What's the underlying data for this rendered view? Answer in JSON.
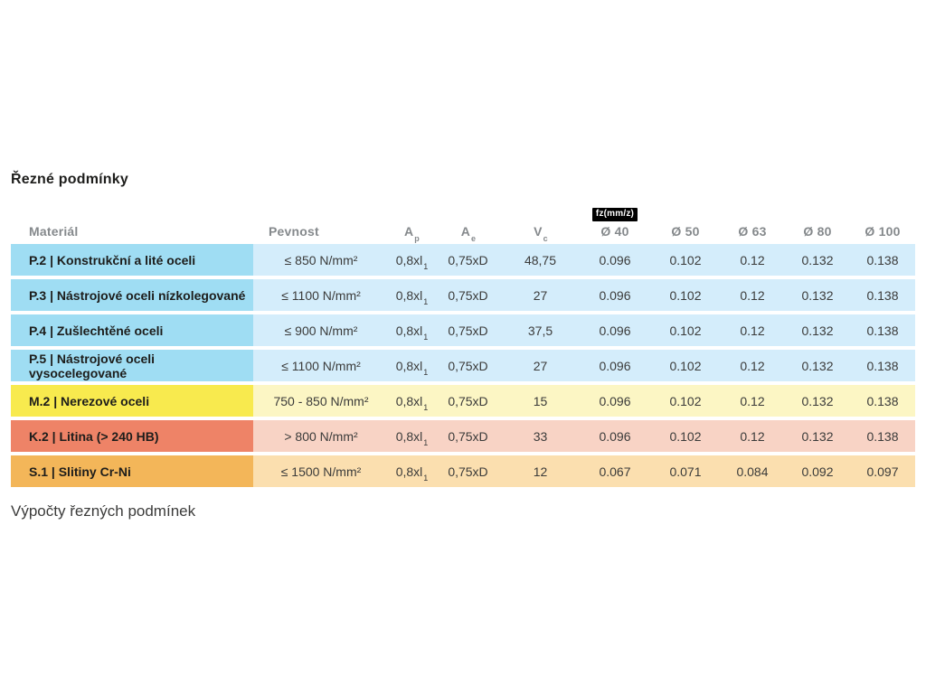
{
  "title": "Řezné podmínky",
  "footer": {
    "text": "Výpočty řezných podmínek"
  },
  "table": {
    "headers": {
      "material": "Materiál",
      "pevnost": "Pevnost",
      "ap": {
        "base": "A",
        "sub": "p"
      },
      "ae": {
        "base": "A",
        "sub": "e"
      },
      "vc": {
        "base": "V",
        "sub": "c"
      },
      "fz_badge": "fz(mm/z)",
      "diameters": [
        "Ø 40",
        "Ø 50",
        "Ø 63",
        "Ø 80",
        "Ø 100"
      ]
    },
    "rows": [
      {
        "material": "P.2 | Konstrukční a lité oceli",
        "pevnost": "≤ 850 N/mm²",
        "ap": {
          "base": "0,8xl",
          "sub": "1"
        },
        "ae": "0,75xD",
        "vc": "48,75",
        "fz": [
          "0.096",
          "0.102",
          "0.12",
          "0.132",
          "0.138"
        ],
        "colors": {
          "label": "#9FDDF3",
          "body": "#D4EDFB"
        }
      },
      {
        "material": "P.3 | Nástrojové oceli nízkolegované",
        "pevnost": "≤ 1100 N/mm²",
        "ap": {
          "base": "0,8xl",
          "sub": "1"
        },
        "ae": "0,75xD",
        "vc": "27",
        "fz": [
          "0.096",
          "0.102",
          "0.12",
          "0.132",
          "0.138"
        ],
        "colors": {
          "label": "#9FDDF3",
          "body": "#D4EDFB"
        }
      },
      {
        "material": "P.4 | Zušlechtěné oceli",
        "pevnost": "≤ 900 N/mm²",
        "ap": {
          "base": "0,8xl",
          "sub": "1"
        },
        "ae": "0,75xD",
        "vc": "37,5",
        "fz": [
          "0.096",
          "0.102",
          "0.12",
          "0.132",
          "0.138"
        ],
        "colors": {
          "label": "#9FDDF3",
          "body": "#D4EDFB"
        }
      },
      {
        "material": "P.5 | Nástrojové oceli vysocelegované",
        "pevnost": "≤ 1100 N/mm²",
        "ap": {
          "base": "0,8xl",
          "sub": "1"
        },
        "ae": "0,75xD",
        "vc": "27",
        "fz": [
          "0.096",
          "0.102",
          "0.12",
          "0.132",
          "0.138"
        ],
        "colors": {
          "label": "#9FDDF3",
          "body": "#D4EDFB"
        }
      },
      {
        "material": "M.2 | Nerezové oceli",
        "pevnost": "750 - 850 N/mm²",
        "ap": {
          "base": "0,8xl",
          "sub": "1"
        },
        "ae": "0,75xD",
        "vc": "15",
        "fz": [
          "0.096",
          "0.102",
          "0.12",
          "0.132",
          "0.138"
        ],
        "colors": {
          "label": "#F8EA4E",
          "body": "#FCF6C4"
        }
      },
      {
        "material": "K.2 | Litina (> 240 HB)",
        "pevnost": "> 800 N/mm²",
        "ap": {
          "base": "0,8xl",
          "sub": "1"
        },
        "ae": "0,75xD",
        "vc": "33",
        "fz": [
          "0.096",
          "0.102",
          "0.12",
          "0.132",
          "0.138"
        ],
        "colors": {
          "label": "#EE8367",
          "body": "#F8D3C5"
        }
      },
      {
        "material": "S.1 | Slitiny Cr-Ni",
        "pevnost": "≤ 1500 N/mm²",
        "ap": {
          "base": "0,8xl",
          "sub": "1"
        },
        "ae": "0,75xD",
        "vc": "12",
        "fz": [
          "0.067",
          "0.071",
          "0.084",
          "0.092",
          "0.097"
        ],
        "colors": {
          "label": "#F3B659",
          "body": "#FBDFAF"
        }
      }
    ]
  }
}
